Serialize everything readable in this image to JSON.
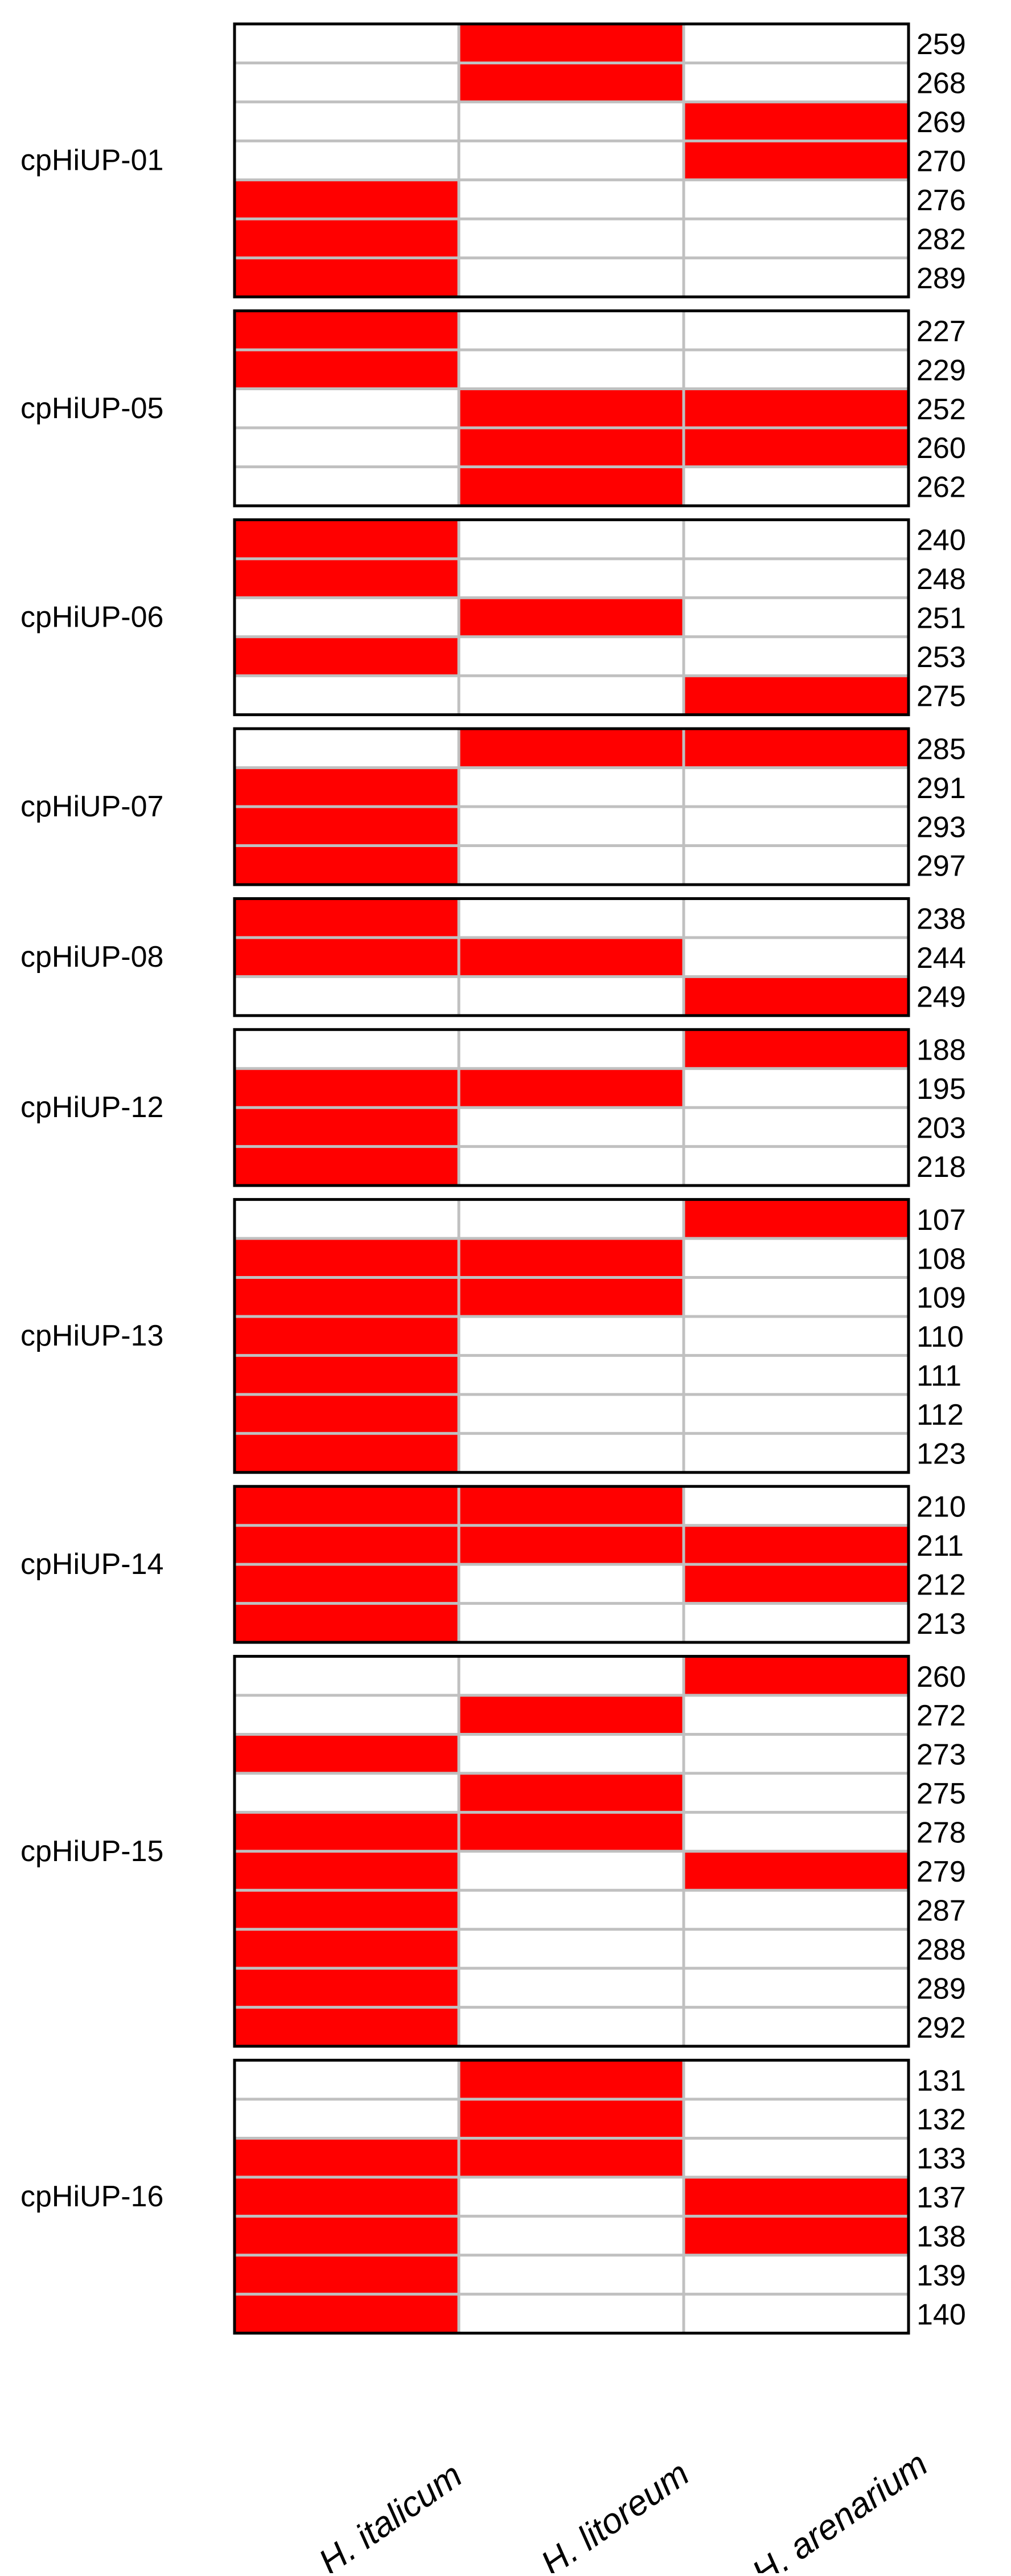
{
  "chart_data": {
    "type": "heatmap",
    "columns": [
      "H. italicum",
      "H. litoreum",
      "H. arenarium"
    ],
    "present_color": "#ff0000",
    "absent_color": "#ffffff",
    "grid_color": "#c0c0c0",
    "border_color": "#000000",
    "loci": [
      {
        "name": "cpHiUP-01",
        "rows": [
          {
            "allele": "259",
            "presence": [
              0,
              1,
              0
            ]
          },
          {
            "allele": "268",
            "presence": [
              0,
              1,
              0
            ]
          },
          {
            "allele": "269",
            "presence": [
              0,
              0,
              1
            ]
          },
          {
            "allele": "270",
            "presence": [
              0,
              0,
              1
            ]
          },
          {
            "allele": "276",
            "presence": [
              1,
              0,
              0
            ]
          },
          {
            "allele": "282",
            "presence": [
              1,
              0,
              0
            ]
          },
          {
            "allele": "289",
            "presence": [
              1,
              0,
              0
            ]
          }
        ]
      },
      {
        "name": "cpHiUP-05",
        "rows": [
          {
            "allele": "227",
            "presence": [
              1,
              0,
              0
            ]
          },
          {
            "allele": "229",
            "presence": [
              1,
              0,
              0
            ]
          },
          {
            "allele": "252",
            "presence": [
              0,
              1,
              1
            ]
          },
          {
            "allele": "260",
            "presence": [
              0,
              1,
              1
            ]
          },
          {
            "allele": "262",
            "presence": [
              0,
              1,
              0
            ]
          }
        ]
      },
      {
        "name": "cpHiUP-06",
        "rows": [
          {
            "allele": "240",
            "presence": [
              1,
              0,
              0
            ]
          },
          {
            "allele": "248",
            "presence": [
              1,
              0,
              0
            ]
          },
          {
            "allele": "251",
            "presence": [
              0,
              1,
              0
            ]
          },
          {
            "allele": "253",
            "presence": [
              1,
              0,
              0
            ]
          },
          {
            "allele": "275",
            "presence": [
              0,
              0,
              1
            ]
          }
        ]
      },
      {
        "name": "cpHiUP-07",
        "rows": [
          {
            "allele": "285",
            "presence": [
              0,
              1,
              1
            ]
          },
          {
            "allele": "291",
            "presence": [
              1,
              0,
              0
            ]
          },
          {
            "allele": "293",
            "presence": [
              1,
              0,
              0
            ]
          },
          {
            "allele": "297",
            "presence": [
              1,
              0,
              0
            ]
          }
        ]
      },
      {
        "name": "cpHiUP-08",
        "rows": [
          {
            "allele": "238",
            "presence": [
              1,
              0,
              0
            ]
          },
          {
            "allele": "244",
            "presence": [
              1,
              1,
              0
            ]
          },
          {
            "allele": "249",
            "presence": [
              0,
              0,
              1
            ]
          }
        ]
      },
      {
        "name": "cpHiUP-12",
        "rows": [
          {
            "allele": "188",
            "presence": [
              0,
              0,
              1
            ]
          },
          {
            "allele": "195",
            "presence": [
              1,
              1,
              0
            ]
          },
          {
            "allele": "203",
            "presence": [
              1,
              0,
              0
            ]
          },
          {
            "allele": "218",
            "presence": [
              1,
              0,
              0
            ]
          }
        ]
      },
      {
        "name": "cpHiUP-13",
        "rows": [
          {
            "allele": "107",
            "presence": [
              0,
              0,
              1
            ]
          },
          {
            "allele": "108",
            "presence": [
              1,
              1,
              0
            ]
          },
          {
            "allele": "109",
            "presence": [
              1,
              1,
              0
            ]
          },
          {
            "allele": "110",
            "presence": [
              1,
              0,
              0
            ]
          },
          {
            "allele": "111",
            "presence": [
              1,
              0,
              0
            ]
          },
          {
            "allele": "112",
            "presence": [
              1,
              0,
              0
            ]
          },
          {
            "allele": "123",
            "presence": [
              1,
              0,
              0
            ]
          }
        ]
      },
      {
        "name": "cpHiUP-14",
        "rows": [
          {
            "allele": "210",
            "presence": [
              1,
              1,
              0
            ]
          },
          {
            "allele": "211",
            "presence": [
              1,
              1,
              1
            ]
          },
          {
            "allele": "212",
            "presence": [
              1,
              0,
              1
            ]
          },
          {
            "allele": "213",
            "presence": [
              1,
              0,
              0
            ]
          }
        ]
      },
      {
        "name": "cpHiUP-15",
        "rows": [
          {
            "allele": "260",
            "presence": [
              0,
              0,
              1
            ]
          },
          {
            "allele": "272",
            "presence": [
              0,
              1,
              0
            ]
          },
          {
            "allele": "273",
            "presence": [
              1,
              0,
              0
            ]
          },
          {
            "allele": "275",
            "presence": [
              0,
              1,
              0
            ]
          },
          {
            "allele": "278",
            "presence": [
              1,
              1,
              0
            ]
          },
          {
            "allele": "279",
            "presence": [
              1,
              0,
              1
            ]
          },
          {
            "allele": "287",
            "presence": [
              1,
              0,
              0
            ]
          },
          {
            "allele": "288",
            "presence": [
              1,
              0,
              0
            ]
          },
          {
            "allele": "289",
            "presence": [
              1,
              0,
              0
            ]
          },
          {
            "allele": "292",
            "presence": [
              1,
              0,
              0
            ]
          }
        ]
      },
      {
        "name": "cpHiUP-16",
        "rows": [
          {
            "allele": "131",
            "presence": [
              0,
              1,
              0
            ]
          },
          {
            "allele": "132",
            "presence": [
              0,
              1,
              0
            ]
          },
          {
            "allele": "133",
            "presence": [
              1,
              1,
              0
            ]
          },
          {
            "allele": "137",
            "presence": [
              1,
              0,
              1
            ]
          },
          {
            "allele": "138",
            "presence": [
              1,
              0,
              1
            ]
          },
          {
            "allele": "139",
            "presence": [
              1,
              0,
              0
            ]
          },
          {
            "allele": "140",
            "presence": [
              1,
              0,
              0
            ]
          }
        ]
      }
    ]
  }
}
